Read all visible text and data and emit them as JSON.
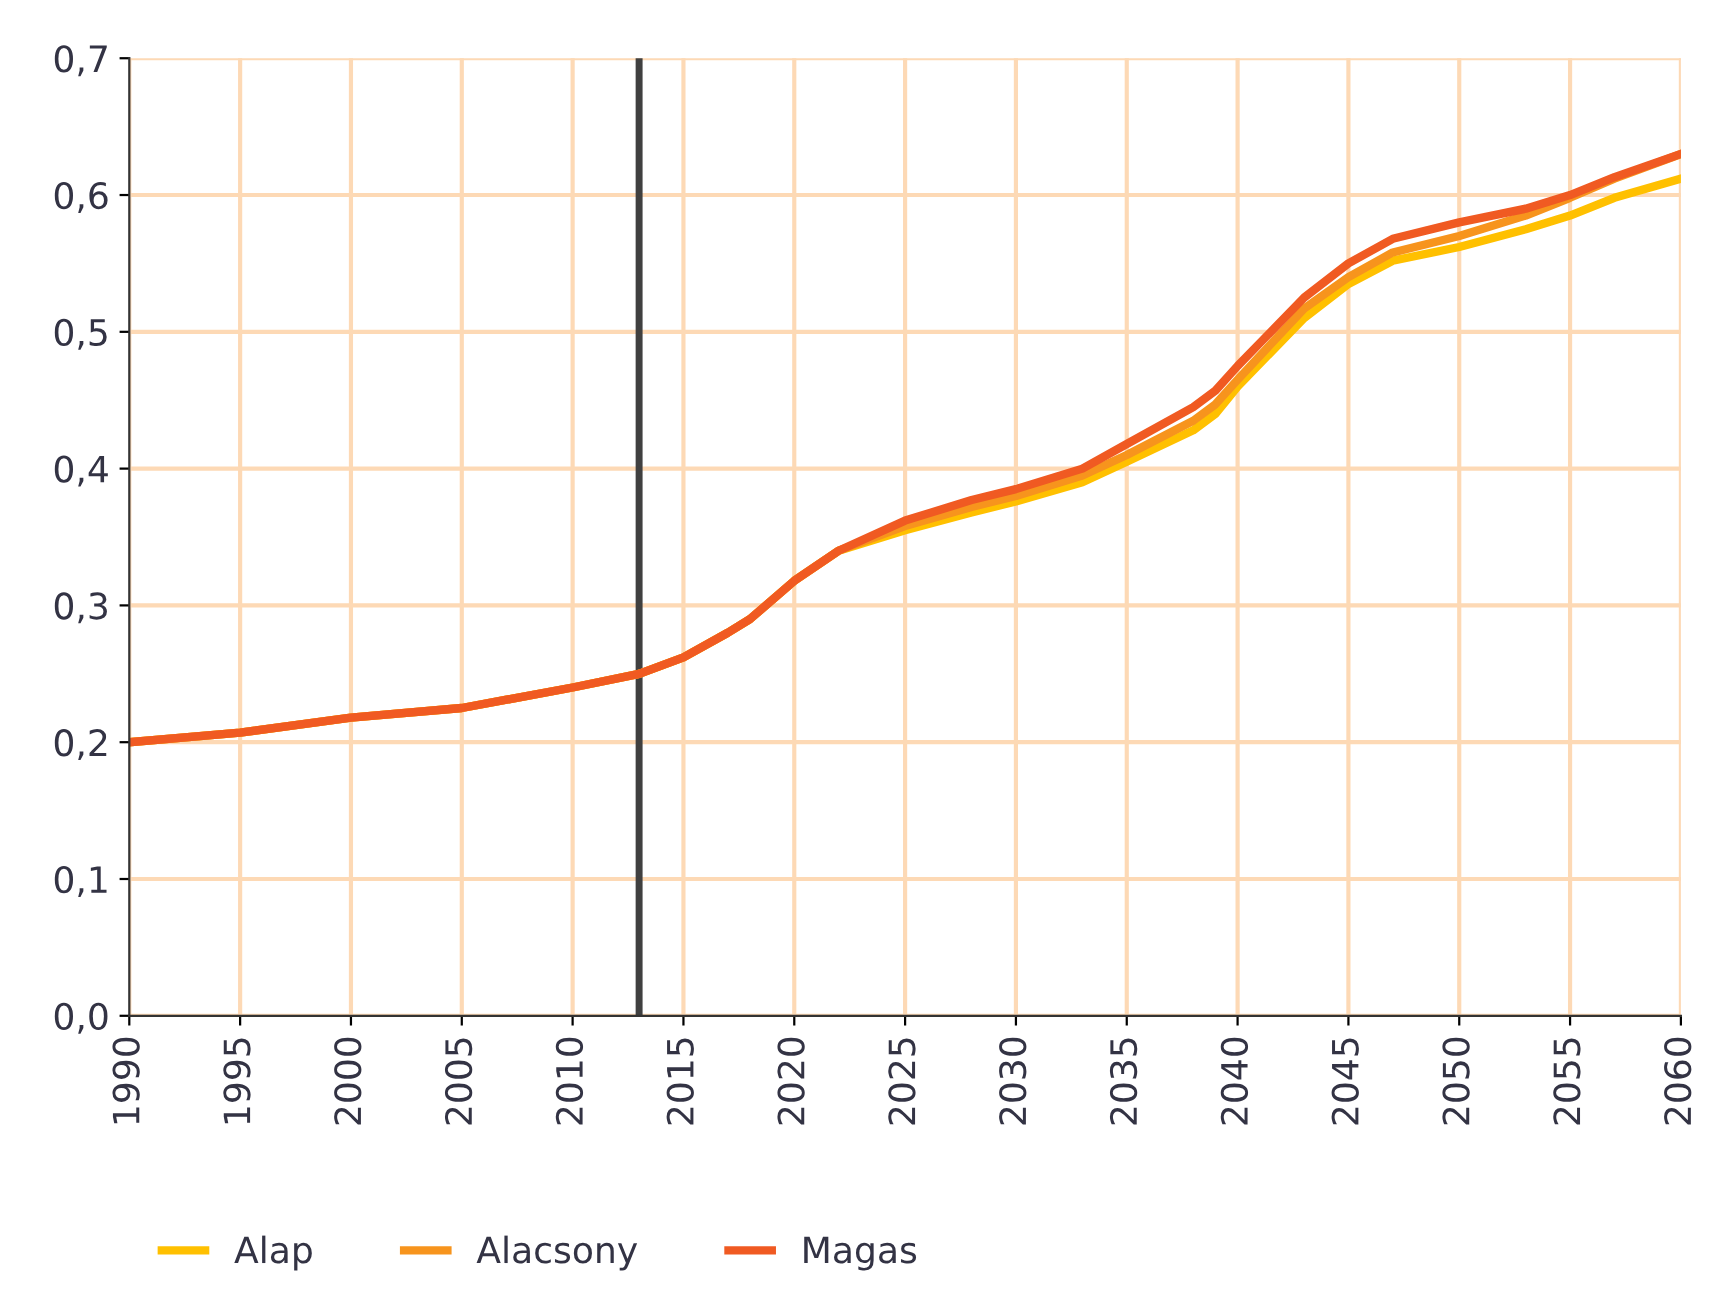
{
  "chart_data": {
    "type": "line",
    "xlim": [
      1990,
      2060
    ],
    "xticks": [
      1990,
      1995,
      2000,
      2005,
      2010,
      2015,
      2020,
      2025,
      2030,
      2035,
      2040,
      2045,
      2050,
      2055,
      2060
    ],
    "ylim": [
      0,
      0.7
    ],
    "yticks": [
      {
        "value": 0,
        "label": "0,0"
      },
      {
        "value": 0.1,
        "label": "0,1"
      },
      {
        "value": 0.2,
        "label": "0,2"
      },
      {
        "value": 0.3,
        "label": "0,3"
      },
      {
        "value": 0.4,
        "label": "0,4"
      },
      {
        "value": 0.5,
        "label": "0,5"
      },
      {
        "value": 0.6,
        "label": "0,6"
      },
      {
        "value": 0.7,
        "label": "0,7"
      }
    ],
    "grid": true,
    "legend": "bottom",
    "line_style": "solid",
    "ref_lines": [
      {
        "axis": "x",
        "value": 2013,
        "label": null,
        "color": "#404040"
      }
    ],
    "series": [
      {
        "name": "Alap",
        "color": "#ffc000",
        "x": [
          1990,
          1995,
          2000,
          2005,
          2010,
          2013,
          2015,
          2017,
          2018,
          2020,
          2022,
          2025,
          2028,
          2030,
          2033,
          2035,
          2038,
          2039,
          2040,
          2043,
          2045,
          2047,
          2050,
          2053,
          2055,
          2057,
          2060
        ],
        "values": [
          0.2,
          0.207,
          0.218,
          0.225,
          0.24,
          0.25,
          0.262,
          0.28,
          0.29,
          0.318,
          0.34,
          0.355,
          0.368,
          0.376,
          0.39,
          0.405,
          0.428,
          0.44,
          0.46,
          0.51,
          0.535,
          0.552,
          0.562,
          0.575,
          0.585,
          0.598,
          0.612
        ]
      },
      {
        "name": "Alacsony",
        "color": "#f7941d",
        "x": [
          1990,
          1995,
          2000,
          2005,
          2010,
          2013,
          2015,
          2017,
          2018,
          2020,
          2022,
          2025,
          2028,
          2030,
          2033,
          2035,
          2038,
          2039,
          2040,
          2043,
          2045,
          2047,
          2050,
          2053,
          2055,
          2057,
          2060
        ],
        "values": [
          0.2,
          0.207,
          0.218,
          0.225,
          0.24,
          0.25,
          0.262,
          0.28,
          0.29,
          0.318,
          0.34,
          0.358,
          0.372,
          0.38,
          0.395,
          0.41,
          0.435,
          0.447,
          0.465,
          0.517,
          0.54,
          0.558,
          0.57,
          0.585,
          0.598,
          0.612,
          0.63
        ]
      },
      {
        "name": "Magas",
        "color": "#f05a22",
        "x": [
          1990,
          1995,
          2000,
          2005,
          2010,
          2013,
          2015,
          2017,
          2018,
          2020,
          2022,
          2025,
          2028,
          2030,
          2033,
          2035,
          2038,
          2039,
          2040,
          2043,
          2045,
          2047,
          2050,
          2053,
          2055,
          2057,
          2060
        ],
        "values": [
          0.2,
          0.207,
          0.218,
          0.225,
          0.24,
          0.25,
          0.262,
          0.28,
          0.29,
          0.318,
          0.34,
          0.362,
          0.377,
          0.385,
          0.4,
          0.418,
          0.445,
          0.457,
          0.475,
          0.525,
          0.55,
          0.568,
          0.58,
          0.59,
          0.6,
          0.613,
          0.63
        ]
      }
    ]
  }
}
